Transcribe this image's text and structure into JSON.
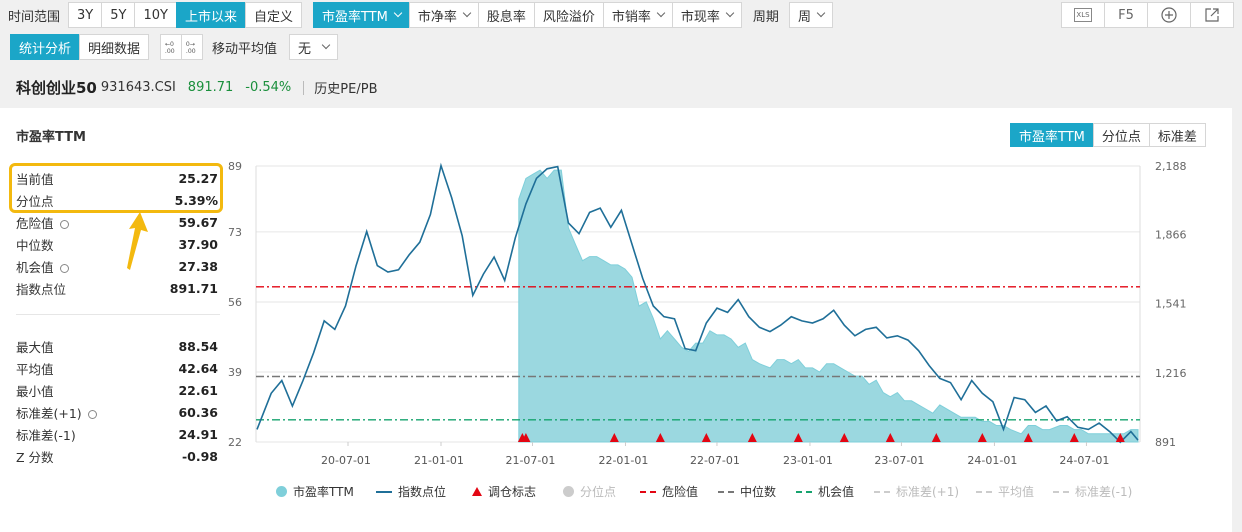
{
  "toolbar1": {
    "range_label": "时间范围",
    "ranges": [
      "3Y",
      "5Y",
      "10Y",
      "上市以来",
      "自定义"
    ],
    "metrics": [
      "市盈率TTM",
      "市净率",
      "股息率",
      "风险溢价",
      "市销率",
      "市现率"
    ],
    "period_label": "周期",
    "period_value": "周",
    "xls": "XLS",
    "f5": "F5"
  },
  "toolbar2": {
    "tabs": [
      "统计分析",
      "明细数据"
    ],
    "ma_label": "移动平均值",
    "ma_value": "无"
  },
  "index": {
    "name": "科创创业50",
    "code": "931643.CSI",
    "price": "891.71",
    "change": "-0.54%",
    "link": "历史PE/PB"
  },
  "panel": {
    "title": "市盈率TTM",
    "chart_tabs": [
      "市盈率TTM",
      "分位点",
      "标准差"
    ]
  },
  "stats_top": [
    {
      "label": "当前值",
      "value": "25.27"
    },
    {
      "label": "分位点",
      "value": "5.39%"
    },
    {
      "label": "危险值",
      "value": "59.67"
    },
    {
      "label": "中位数",
      "value": "37.90"
    },
    {
      "label": "机会值",
      "value": "27.38"
    },
    {
      "label": "指数点位",
      "value": "891.71"
    }
  ],
  "stats_bottom": [
    {
      "label": "最大值",
      "value": "88.54"
    },
    {
      "label": "平均值",
      "value": "42.64"
    },
    {
      "label": "最小值",
      "value": "22.61"
    },
    {
      "label": "标准差(+1)",
      "value": "60.36"
    },
    {
      "label": "标准差(-1)",
      "value": "24.91"
    },
    {
      "label": "Z 分数",
      "value": "-0.98"
    }
  ],
  "colors": {
    "accent": "#1ba6c8",
    "pe_fill": "#9bd8e0",
    "index_line": "#1f6f98",
    "danger": "#e30613",
    "median": "#777777",
    "opportunity": "#16a36e",
    "highlight": "#f3b90f"
  },
  "chart_data": {
    "type": "area",
    "left_axis": {
      "ticks": [
        "89",
        "73",
        "56",
        "39",
        "22"
      ],
      "range": [
        22,
        89
      ]
    },
    "right_axis": {
      "ticks": [
        "2,188",
        "1,866",
        "1,541",
        "1,216",
        "891"
      ],
      "range": [
        891,
        2188
      ]
    },
    "x_ticks": [
      "20-07-01",
      "21-01-01",
      "21-07-01",
      "22-01-01",
      "22-07-01",
      "23-01-01",
      "23-07-01",
      "24-01-01",
      "24-07-01"
    ],
    "x_range": [
      "2020-01-01",
      "2024-10-15"
    ],
    "reference_lines": {
      "danger": 59.67,
      "median": 37.9,
      "opportunity": 27.38
    },
    "pe_series": {
      "name": "市盈率TTM",
      "dates": [
        "2021-06-04",
        "2021-06-18",
        "2021-07-02",
        "2021-07-16",
        "2021-07-30",
        "2021-08-13",
        "2021-08-27",
        "2021-09-10",
        "2021-09-24",
        "2021-10-08",
        "2021-10-22",
        "2021-11-05",
        "2021-11-19",
        "2021-12-03",
        "2021-12-17",
        "2021-12-31",
        "2022-01-14",
        "2022-01-28",
        "2022-02-11",
        "2022-02-25",
        "2022-03-11",
        "2022-03-25",
        "2022-04-08",
        "2022-04-22",
        "2022-05-06",
        "2022-05-20",
        "2022-06-03",
        "2022-06-17",
        "2022-07-01",
        "2022-07-15",
        "2022-07-29",
        "2022-08-12",
        "2022-08-26",
        "2022-09-09",
        "2022-09-23",
        "2022-10-14",
        "2022-10-28",
        "2022-11-11",
        "2022-11-25",
        "2022-12-09",
        "2022-12-23",
        "2023-01-06",
        "2023-01-20",
        "2023-02-03",
        "2023-02-17",
        "2023-03-03",
        "2023-03-17",
        "2023-03-31",
        "2023-04-14",
        "2023-04-28",
        "2023-05-12",
        "2023-05-26",
        "2023-06-09",
        "2023-06-23",
        "2023-07-07",
        "2023-07-21",
        "2023-08-04",
        "2023-08-18",
        "2023-09-01",
        "2023-09-15",
        "2023-10-13",
        "2023-10-27",
        "2023-11-10",
        "2023-11-24",
        "2023-12-08",
        "2023-12-22",
        "2024-01-05",
        "2024-01-19",
        "2024-02-02",
        "2024-02-23",
        "2024-03-08",
        "2024-03-22",
        "2024-04-05",
        "2024-04-19",
        "2024-05-10",
        "2024-05-24",
        "2024-06-07",
        "2024-06-21",
        "2024-07-05",
        "2024-07-19",
        "2024-08-02",
        "2024-08-16",
        "2024-08-30",
        "2024-09-13",
        "2024-09-27",
        "2024-10-11"
      ],
      "values": [
        81,
        86,
        87,
        88,
        86,
        88,
        88,
        74,
        70,
        66,
        67,
        67,
        66,
        65,
        65,
        64,
        62,
        55,
        56,
        52,
        47,
        49,
        47,
        45,
        44,
        46,
        46,
        49,
        48,
        48,
        47,
        45,
        46,
        42,
        41,
        40,
        42,
        42,
        41,
        42,
        40,
        40,
        39,
        41,
        41,
        40,
        39,
        38,
        38,
        36,
        37,
        34,
        33,
        34,
        32,
        32,
        31,
        30,
        29,
        31,
        29,
        28,
        28,
        28,
        27,
        27,
        26,
        26,
        25,
        24,
        26,
        26,
        25,
        25,
        26,
        26,
        25,
        25,
        24,
        24,
        24,
        24,
        24,
        24,
        25,
        25
      ]
    },
    "index_series": {
      "name": "指数点位",
      "dates": [
        "2020-01-03",
        "2020-01-31",
        "2020-02-21",
        "2020-03-13",
        "2020-04-03",
        "2020-04-24",
        "2020-05-15",
        "2020-06-05",
        "2020-06-26",
        "2020-07-17",
        "2020-08-07",
        "2020-08-28",
        "2020-09-18",
        "2020-10-09",
        "2020-10-30",
        "2020-11-20",
        "2020-12-11",
        "2021-01-01",
        "2021-01-22",
        "2021-02-12",
        "2021-03-05",
        "2021-03-26",
        "2021-04-16",
        "2021-05-07",
        "2021-05-28",
        "2021-06-18",
        "2021-07-09",
        "2021-07-30",
        "2021-08-20",
        "2021-09-10",
        "2021-10-01",
        "2021-10-22",
        "2021-11-12",
        "2021-12-03",
        "2021-12-24",
        "2022-01-14",
        "2022-02-04",
        "2022-02-25",
        "2022-03-18",
        "2022-04-08",
        "2022-04-29",
        "2022-05-20",
        "2022-06-10",
        "2022-07-01",
        "2022-07-22",
        "2022-08-12",
        "2022-09-02",
        "2022-09-23",
        "2022-10-14",
        "2022-11-04",
        "2022-11-25",
        "2022-12-16",
        "2023-01-06",
        "2023-01-27",
        "2023-02-17",
        "2023-03-10",
        "2023-03-31",
        "2023-04-21",
        "2023-05-12",
        "2023-06-02",
        "2023-06-23",
        "2023-07-14",
        "2023-08-04",
        "2023-08-25",
        "2023-09-15",
        "2023-10-06",
        "2023-10-27",
        "2023-11-17",
        "2023-12-08",
        "2023-12-29",
        "2024-01-19",
        "2024-02-09",
        "2024-03-01",
        "2024-03-22",
        "2024-04-12",
        "2024-05-03",
        "2024-05-24",
        "2024-06-14",
        "2024-07-05",
        "2024-07-26",
        "2024-08-16",
        "2024-09-06",
        "2024-09-27",
        "2024-10-11"
      ],
      "values": [
        950,
        1120,
        1180,
        1060,
        1180,
        1310,
        1460,
        1420,
        1530,
        1720,
        1880,
        1720,
        1690,
        1700,
        1770,
        1830,
        1960,
        2190,
        2040,
        1860,
        1580,
        1680,
        1760,
        1650,
        1850,
        2010,
        2130,
        2175,
        2185,
        1920,
        1870,
        1970,
        1990,
        1900,
        1980,
        1820,
        1660,
        1530,
        1480,
        1470,
        1330,
        1320,
        1450,
        1520,
        1500,
        1560,
        1480,
        1430,
        1410,
        1440,
        1480,
        1460,
        1450,
        1470,
        1510,
        1440,
        1390,
        1420,
        1430,
        1380,
        1390,
        1370,
        1320,
        1250,
        1190,
        1170,
        1090,
        1180,
        1120,
        1080,
        950,
        1100,
        1090,
        1030,
        1060,
        990,
        1010,
        960,
        950,
        980,
        940,
        890,
        940,
        900
      ]
    },
    "rebalance_dates": [
      "2021-06-11",
      "2021-06-18",
      "2021-12-10",
      "2022-03-11",
      "2022-06-10",
      "2022-09-09",
      "2022-12-09",
      "2023-03-10",
      "2023-06-09",
      "2023-09-08",
      "2023-12-08",
      "2024-03-08",
      "2024-06-07",
      "2024-09-06"
    ],
    "legend": [
      "市盈率TTM",
      "指数点位",
      "调仓标志",
      "分位点",
      "危险值",
      "中位数",
      "机会值",
      "标准差(+1)",
      "平均值",
      "标准差(-1)"
    ]
  }
}
